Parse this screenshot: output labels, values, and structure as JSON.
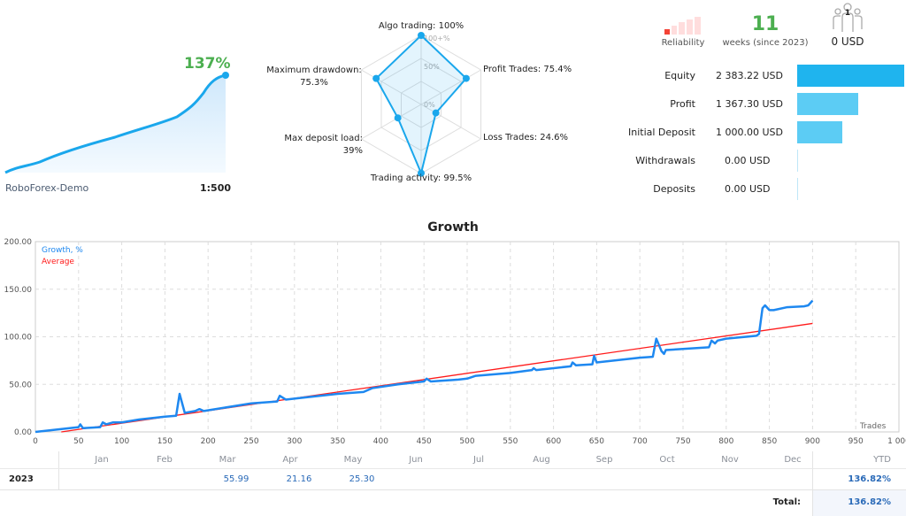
{
  "mini": {
    "growth": "137%",
    "server": "RoboForex-Demo",
    "leverage": "1:500"
  },
  "radar": {
    "axes": [
      {
        "label": "Algo trading: 100%",
        "value": 100
      },
      {
        "label": "Profit Trades: 75.4%",
        "value": 75.4
      },
      {
        "label": "Loss Trades: 24.6%",
        "value": 24.6
      },
      {
        "label": "Trading activity: 99.5%",
        "value": 99.5
      },
      {
        "label": "Max deposit load:\n39%",
        "value": 39
      },
      {
        "label": "Maximum drawdown:\n75.3%",
        "value": 75.3
      }
    ],
    "rings": [
      "100+%",
      "50%",
      "0%"
    ]
  },
  "summary": {
    "reliability_label": "Reliability",
    "weeks": "11",
    "weeks_label": "weeks (since 2023)",
    "subscribers_count": "1",
    "subscribers_funds": "0 USD"
  },
  "stats": [
    {
      "label": "Equity",
      "value": "2 383.22 USD",
      "amount": 2383.22
    },
    {
      "label": "Profit",
      "value": "1 367.30 USD",
      "amount": 1367.3
    },
    {
      "label": "Initial Deposit",
      "value": "1 000.00 USD",
      "amount": 1000
    },
    {
      "label": "Withdrawals",
      "value": "0.00 USD",
      "amount": 0
    },
    {
      "label": "Deposits",
      "value": "0.00 USD",
      "amount": 0
    }
  ],
  "colors": {
    "accent": "#1aa7ec",
    "growth": "#1e88f0",
    "average": "#ff1a1a",
    "positive": "#4caf50"
  },
  "chart_data": {
    "type": "line",
    "title": "Growth",
    "xlabel": "Trades",
    "xlim": [
      0,
      1000
    ],
    "ylim": [
      0,
      200
    ],
    "yticks": [
      "0.00",
      "50.00",
      "100.00",
      "150.00",
      "200.00"
    ],
    "xticks": [
      "0",
      "50",
      "100",
      "150",
      "200",
      "250",
      "300",
      "350",
      "400",
      "450",
      "500",
      "550",
      "600",
      "650",
      "700",
      "750",
      "800",
      "850",
      "900",
      "950",
      "1 000"
    ],
    "grid": true,
    "legend": "top-left",
    "series": [
      {
        "name": "Growth, %",
        "points": [
          [
            0,
            0
          ],
          [
            50,
            5
          ],
          [
            52,
            8
          ],
          [
            55,
            4
          ],
          [
            75,
            5
          ],
          [
            78,
            10
          ],
          [
            82,
            8
          ],
          [
            90,
            10
          ],
          [
            100,
            10
          ],
          [
            120,
            13
          ],
          [
            150,
            16
          ],
          [
            163,
            17
          ],
          [
            167,
            40
          ],
          [
            173,
            20
          ],
          [
            185,
            22
          ],
          [
            190,
            24
          ],
          [
            195,
            22
          ],
          [
            250,
            30
          ],
          [
            280,
            32
          ],
          [
            283,
            38
          ],
          [
            290,
            34
          ],
          [
            300,
            35
          ],
          [
            350,
            40
          ],
          [
            380,
            42
          ],
          [
            390,
            46
          ],
          [
            420,
            50
          ],
          [
            450,
            53
          ],
          [
            453,
            56
          ],
          [
            458,
            53
          ],
          [
            490,
            55
          ],
          [
            500,
            56
          ],
          [
            510,
            59
          ],
          [
            550,
            62
          ],
          [
            575,
            65
          ],
          [
            577,
            67
          ],
          [
            580,
            65
          ],
          [
            620,
            69
          ],
          [
            622,
            73
          ],
          [
            626,
            70
          ],
          [
            645,
            71
          ],
          [
            647,
            80
          ],
          [
            650,
            73
          ],
          [
            700,
            78
          ],
          [
            715,
            79
          ],
          [
            719,
            98
          ],
          [
            725,
            85
          ],
          [
            728,
            82
          ],
          [
            730,
            86
          ],
          [
            780,
            89
          ],
          [
            783,
            96
          ],
          [
            787,
            93
          ],
          [
            790,
            96
          ],
          [
            800,
            98
          ],
          [
            835,
            101
          ],
          [
            838,
            103
          ],
          [
            842,
            130
          ],
          [
            845,
            133
          ],
          [
            850,
            128
          ],
          [
            855,
            128
          ],
          [
            870,
            131
          ],
          [
            890,
            132
          ],
          [
            895,
            133
          ],
          [
            900,
            138
          ]
        ]
      },
      {
        "name": "Average",
        "points": [
          [
            30,
            0
          ],
          [
            900,
            114
          ]
        ]
      }
    ]
  },
  "table": {
    "months": [
      "Jan",
      "Feb",
      "Mar",
      "Apr",
      "May",
      "Jun",
      "Jul",
      "Aug",
      "Sep",
      "Oct",
      "Nov",
      "Dec"
    ],
    "ytd_label": "YTD",
    "rows": [
      {
        "year": "2023",
        "values": [
          "",
          "",
          "55.99",
          "21.16",
          "25.30",
          "",
          "",
          "",
          "",
          "",
          "",
          ""
        ],
        "ytd": "136.82%"
      }
    ],
    "total_label": "Total:",
    "total": "136.82%"
  }
}
